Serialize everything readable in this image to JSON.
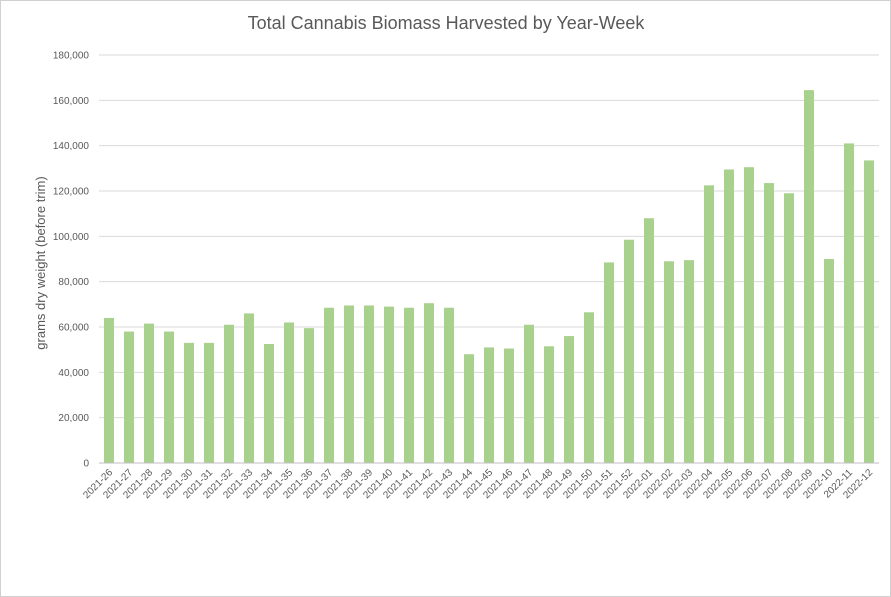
{
  "chart_data": {
    "type": "bar",
    "title": "Total Cannabis Biomass Harvested by Year-Week",
    "xlabel": "",
    "ylabel": "grams dry weight (before trim)",
    "ylim": [
      0,
      180000
    ],
    "yticks": [
      0,
      20000,
      40000,
      60000,
      80000,
      100000,
      120000,
      140000,
      160000,
      180000
    ],
    "ytick_labels": [
      "0",
      "20,000",
      "40,000",
      "60,000",
      "80,000",
      "100,000",
      "120,000",
      "140,000",
      "160,000",
      "180,000"
    ],
    "grid": true,
    "legend": "none",
    "bar_color": "#a9d18e",
    "categories": [
      "2021-26",
      "2021-27",
      "2021-28",
      "2021-29",
      "2021-30",
      "2021-31",
      "2021-32",
      "2021-33",
      "2021-34",
      "2021-35",
      "2021-36",
      "2021-37",
      "2021-38",
      "2021-39",
      "2021-40",
      "2021-41",
      "2021-42",
      "2021-43",
      "2021-44",
      "2021-45",
      "2021-46",
      "2021-47",
      "2021-48",
      "2021-49",
      "2021-50",
      "2021-51",
      "2021-52",
      "2022-01",
      "2022-02",
      "2022-03",
      "2022-04",
      "2022-05",
      "2022-06",
      "2022-07",
      "2022-08",
      "2022-09",
      "2022-10",
      "2022-11",
      "2022-12"
    ],
    "values": [
      64000,
      58000,
      61500,
      58000,
      53000,
      53000,
      61000,
      66000,
      52500,
      62000,
      59500,
      68500,
      69500,
      69500,
      69000,
      68500,
      70500,
      68500,
      48000,
      51000,
      50500,
      61000,
      51500,
      56000,
      66500,
      88500,
      98500,
      108000,
      89000,
      89500,
      122500,
      129500,
      130500,
      123500,
      119000,
      164500,
      90000,
      141000,
      133500
    ]
  }
}
